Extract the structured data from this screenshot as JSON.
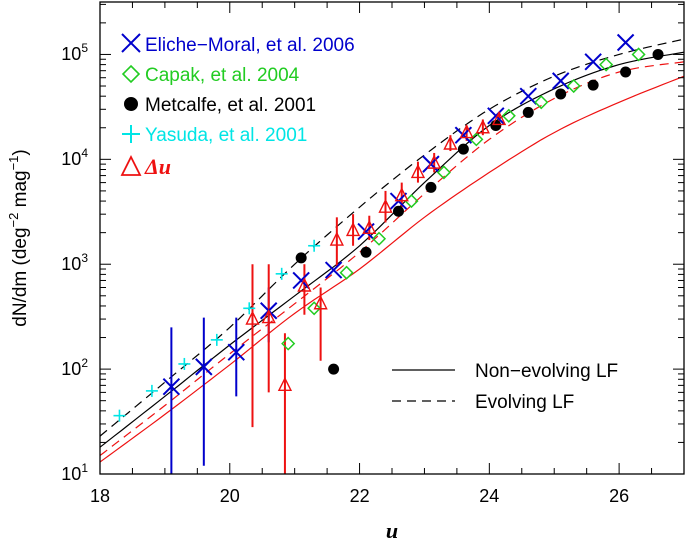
{
  "chart_data": {
    "type": "scatter",
    "xlabel": "u",
    "ylabel": "dN/dm (deg⁻² mag⁻¹)",
    "ylabel_parts": {
      "main": "dN/dm (deg",
      "exp1": "−2",
      "mid": " mag",
      "exp2": "−1",
      "end": ")"
    },
    "xlim": [
      18,
      27
    ],
    "ylim_log10": [
      1,
      5.5
    ],
    "yscale": "log",
    "x_ticks": [
      "18",
      "20",
      "22",
      "24",
      "26"
    ],
    "y_ticks": [
      {
        "base": "10",
        "exp": "1"
      },
      {
        "base": "10",
        "exp": "2"
      },
      {
        "base": "10",
        "exp": "3"
      },
      {
        "base": "10",
        "exp": "4"
      },
      {
        "base": "10",
        "exp": "5"
      }
    ],
    "colors": {
      "eliche": "#0000cc",
      "capak": "#22cc22",
      "metcalfe": "#000000",
      "yasuda": "#00e5e5",
      "delta_u": "#ee1111",
      "model_red": "#ee1111",
      "model_black": "#000000"
    },
    "legend_labels": {
      "eliche": "Eliche−Moral, et al. 2006",
      "capak": "Capak, et al. 2004",
      "metcalfe": "Metcalfe, et al. 2001",
      "yasuda": "Yasuda, et al. 2001",
      "delta_u": "Δu"
    },
    "line_legend": {
      "non_evolving": "Non−evolving LF",
      "evolving": "Evolving LF"
    },
    "series": [
      {
        "id": "eliche",
        "marker": "x",
        "points": [
          {
            "x": 19.1,
            "y": 68,
            "ylo": 10,
            "yhi": 250
          },
          {
            "x": 19.6,
            "y": 105,
            "ylo": 12,
            "yhi": 310
          },
          {
            "x": 20.1,
            "y": 145,
            "ylo": 55,
            "yhi": 310
          },
          {
            "x": 20.6,
            "y": 360,
            "ylo": 180,
            "yhi": 600
          },
          {
            "x": 21.1,
            "y": 700
          },
          {
            "x": 21.6,
            "y": 880
          },
          {
            "x": 22.1,
            "y": 2050
          },
          {
            "x": 22.6,
            "y": 4000
          },
          {
            "x": 23.1,
            "y": 9000
          },
          {
            "x": 23.6,
            "y": 17000
          },
          {
            "x": 24.1,
            "y": 26000
          },
          {
            "x": 24.6,
            "y": 40000
          },
          {
            "x": 25.1,
            "y": 56000
          },
          {
            "x": 25.6,
            "y": 85000
          },
          {
            "x": 26.1,
            "y": 130000
          }
        ]
      },
      {
        "id": "capak",
        "marker": "diamond",
        "points": [
          {
            "x": 20.9,
            "y": 175
          },
          {
            "x": 21.3,
            "y": 380
          },
          {
            "x": 21.8,
            "y": 830
          },
          {
            "x": 22.3,
            "y": 1750
          },
          {
            "x": 22.8,
            "y": 4000
          },
          {
            "x": 23.3,
            "y": 7500
          },
          {
            "x": 23.8,
            "y": 15500
          },
          {
            "x": 24.3,
            "y": 26000
          },
          {
            "x": 24.8,
            "y": 35000
          },
          {
            "x": 25.3,
            "y": 50000
          },
          {
            "x": 25.8,
            "y": 80000
          },
          {
            "x": 26.3,
            "y": 100000
          }
        ]
      },
      {
        "id": "metcalfe",
        "marker": "circle",
        "points": [
          {
            "x": 21.1,
            "y": 1150
          },
          {
            "x": 21.6,
            "y": 100
          },
          {
            "x": 22.1,
            "y": 1300
          },
          {
            "x": 22.6,
            "y": 3200
          },
          {
            "x": 23.1,
            "y": 5400
          },
          {
            "x": 23.6,
            "y": 12500
          },
          {
            "x": 24.1,
            "y": 21000
          },
          {
            "x": 24.6,
            "y": 28000
          },
          {
            "x": 25.1,
            "y": 42000
          },
          {
            "x": 25.6,
            "y": 51000
          },
          {
            "x": 26.1,
            "y": 68000
          },
          {
            "x": 26.6,
            "y": 100000
          }
        ]
      },
      {
        "id": "yasuda",
        "marker": "plus",
        "points": [
          {
            "x": 18.3,
            "y": 36
          },
          {
            "x": 18.8,
            "y": 62
          },
          {
            "x": 19.3,
            "y": 112
          },
          {
            "x": 19.8,
            "y": 190
          },
          {
            "x": 20.3,
            "y": 380
          },
          {
            "x": 20.8,
            "y": 810
          },
          {
            "x": 21.3,
            "y": 1500
          }
        ]
      },
      {
        "id": "delta_u",
        "marker": "triangle",
        "points": [
          {
            "x": 20.35,
            "y": 300,
            "ylo": 28,
            "yhi": 1000
          },
          {
            "x": 20.6,
            "y": 310,
            "ylo": 60,
            "yhi": 1000
          },
          {
            "x": 20.85,
            "y": 70,
            "ylo": 10,
            "yhi": 220
          },
          {
            "x": 21.15,
            "y": 620,
            "ylo": 330,
            "yhi": 1000
          },
          {
            "x": 21.4,
            "y": 420,
            "ylo": 120,
            "yhi": 600
          },
          {
            "x": 21.65,
            "y": 1700,
            "ylo": 950,
            "yhi": 2800
          },
          {
            "x": 21.9,
            "y": 2100,
            "ylo": 1500,
            "yhi": 3000
          },
          {
            "x": 22.15,
            "y": 2200,
            "ylo": 1700,
            "yhi": 2900
          },
          {
            "x": 22.4,
            "y": 3500,
            "ylo": 2500,
            "yhi": 5000
          },
          {
            "x": 22.65,
            "y": 4500,
            "ylo": 3500,
            "yhi": 6000
          },
          {
            "x": 22.9,
            "y": 7500,
            "ylo": 6000,
            "yhi": 9500
          },
          {
            "x": 23.15,
            "y": 9200,
            "ylo": 7500,
            "yhi": 11500
          },
          {
            "x": 23.4,
            "y": 14000,
            "ylo": 12000,
            "yhi": 17000
          },
          {
            "x": 23.65,
            "y": 18000,
            "ylo": 15000,
            "yhi": 21000
          },
          {
            "x": 23.9,
            "y": 20000,
            "ylo": 17000,
            "yhi": 24000
          },
          {
            "x": 24.15,
            "y": 24000,
            "ylo": 21000,
            "yhi": 28000
          }
        ]
      }
    ],
    "model_curves": [
      {
        "id": "non-evolving-black",
        "style": "solid",
        "color_key": "model_black",
        "x": [
          18,
          19,
          20,
          21,
          22,
          23,
          24,
          25,
          26,
          27
        ],
        "y": [
          18,
          55,
          170,
          500,
          1500,
          6000,
          21000,
          47000,
          80000,
          105000
        ]
      },
      {
        "id": "evolving-black",
        "style": "dashed",
        "color_key": "model_black",
        "x": [
          18,
          19,
          20,
          21,
          22,
          23,
          24,
          25,
          26,
          27
        ],
        "y": [
          23,
          75,
          250,
          1000,
          3500,
          11000,
          30000,
          62000,
          100000,
          140000
        ]
      },
      {
        "id": "non-evolving-red",
        "style": "solid",
        "color_key": "model_red",
        "x": [
          18,
          19,
          20,
          21,
          22,
          23,
          24,
          25,
          26,
          27
        ],
        "y": [
          13,
          37,
          110,
          340,
          900,
          2800,
          7500,
          18000,
          35000,
          62000
        ]
      },
      {
        "id": "evolving-red",
        "style": "dashed",
        "color_key": "model_red",
        "x": [
          18,
          19,
          20,
          21,
          22,
          23,
          24,
          25,
          26,
          27
        ],
        "y": [
          15,
          45,
          140,
          420,
          1300,
          4700,
          15500,
          38000,
          68000,
          85000
        ]
      }
    ]
  }
}
